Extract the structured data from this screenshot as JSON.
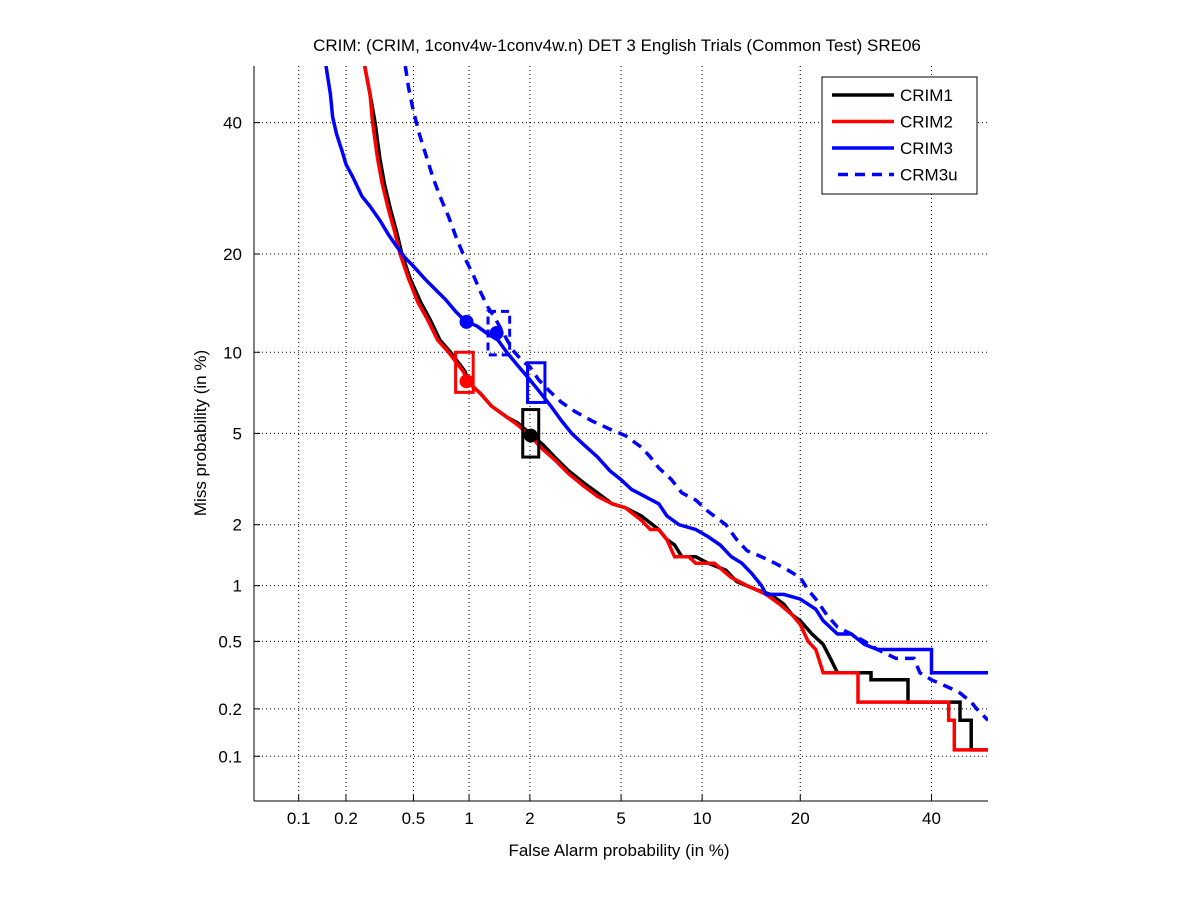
{
  "chart_data": {
    "type": "line",
    "title": "CRIM: (CRIM, 1conv4w-1conv4w.n) DET 3 English Trials (Common Test) SRE06",
    "xlabel": "False Alarm probability (in %)",
    "ylabel": "Miss probability (in %)",
    "scale": "probit",
    "xlim": [
      0.05,
      50
    ],
    "ylim": [
      0.05,
      50
    ],
    "grid": true,
    "legend_position": "top-right",
    "xticks": [
      0.1,
      0.2,
      0.5,
      1,
      2,
      5,
      10,
      20,
      40
    ],
    "xtick_labels": [
      "0.1",
      "0.2",
      "0.5",
      "1",
      "2",
      "5",
      "10",
      "20",
      "40"
    ],
    "yticks": [
      0.1,
      0.2,
      0.5,
      1,
      2,
      5,
      10,
      20,
      40
    ],
    "ytick_labels": [
      "0.1",
      "0.2",
      "0.5",
      "1",
      "2",
      "5",
      "10",
      "20",
      "40"
    ],
    "series": [
      {
        "name": "CRIM1",
        "color": "#000000",
        "style": "solid",
        "points": [
          [
            0.26,
            50
          ],
          [
            0.28,
            45
          ],
          [
            0.3,
            40
          ],
          [
            0.32,
            34
          ],
          [
            0.34,
            30
          ],
          [
            0.37,
            26
          ],
          [
            0.4,
            23
          ],
          [
            0.43,
            20
          ],
          [
            0.48,
            17
          ],
          [
            0.55,
            14.5
          ],
          [
            0.62,
            12.8
          ],
          [
            0.7,
            11
          ],
          [
            0.8,
            10
          ],
          [
            0.88,
            9.2
          ],
          [
            0.95,
            8.6
          ],
          [
            1.0,
            7.8
          ],
          [
            1.15,
            7.1
          ],
          [
            1.3,
            6.4
          ],
          [
            1.55,
            5.8
          ],
          [
            1.75,
            5.5
          ],
          [
            2.0,
            5.0
          ],
          [
            2.3,
            4.5
          ],
          [
            2.6,
            4.0
          ],
          [
            3.0,
            3.5
          ],
          [
            3.5,
            3.1
          ],
          [
            4.0,
            2.8
          ],
          [
            4.6,
            2.5
          ],
          [
            5.2,
            2.4
          ],
          [
            6.0,
            2.2
          ],
          [
            7.0,
            1.9
          ],
          [
            7.5,
            1.7
          ],
          [
            8.0,
            1.6
          ],
          [
            8.5,
            1.4
          ],
          [
            9.5,
            1.4
          ],
          [
            10.5,
            1.3
          ],
          [
            12,
            1.2
          ],
          [
            13,
            1.05
          ],
          [
            15,
            0.95
          ],
          [
            16.5,
            0.9
          ],
          [
            18,
            0.8
          ],
          [
            19,
            0.7
          ],
          [
            20,
            0.65
          ],
          [
            21.5,
            0.55
          ],
          [
            23,
            0.48
          ],
          [
            24,
            0.4
          ],
          [
            25,
            0.33
          ],
          [
            30,
            0.33
          ],
          [
            30,
            0.3
          ],
          [
            36,
            0.3
          ],
          [
            36,
            0.22
          ],
          [
            45,
            0.22
          ],
          [
            45,
            0.17
          ],
          [
            47,
            0.17
          ],
          [
            47,
            0.11
          ],
          [
            50,
            0.11
          ]
        ]
      },
      {
        "name": "CRIM2",
        "color": "#ff0000",
        "style": "solid",
        "points": [
          [
            0.26,
            50
          ],
          [
            0.28,
            45
          ],
          [
            0.29,
            40
          ],
          [
            0.31,
            34
          ],
          [
            0.33,
            30
          ],
          [
            0.36,
            26
          ],
          [
            0.39,
            23
          ],
          [
            0.42,
            20
          ],
          [
            0.47,
            17
          ],
          [
            0.53,
            14.5
          ],
          [
            0.6,
            12.8
          ],
          [
            0.68,
            11
          ],
          [
            0.78,
            10
          ],
          [
            0.86,
            9.2
          ],
          [
            0.93,
            8.6
          ],
          [
            1.0,
            7.8
          ],
          [
            1.15,
            7.1
          ],
          [
            1.3,
            6.4
          ],
          [
            1.55,
            5.8
          ],
          [
            1.75,
            5.4
          ],
          [
            2.0,
            4.9
          ],
          [
            2.3,
            4.3
          ],
          [
            2.6,
            3.9
          ],
          [
            3.0,
            3.4
          ],
          [
            3.5,
            3.0
          ],
          [
            4.0,
            2.7
          ],
          [
            4.6,
            2.5
          ],
          [
            5.2,
            2.4
          ],
          [
            6.0,
            2.1
          ],
          [
            6.5,
            1.9
          ],
          [
            7.0,
            1.9
          ],
          [
            7.5,
            1.7
          ],
          [
            8.0,
            1.4
          ],
          [
            9.0,
            1.4
          ],
          [
            9.5,
            1.3
          ],
          [
            11,
            1.3
          ],
          [
            12.5,
            1.1
          ],
          [
            14,
            1.0
          ],
          [
            16,
            0.9
          ],
          [
            17.5,
            0.8
          ],
          [
            19,
            0.7
          ],
          [
            20,
            0.62
          ],
          [
            21,
            0.5
          ],
          [
            22,
            0.45
          ],
          [
            23,
            0.33
          ],
          [
            28,
            0.33
          ],
          [
            28,
            0.22
          ],
          [
            43,
            0.22
          ],
          [
            43,
            0.17
          ],
          [
            44,
            0.17
          ],
          [
            44,
            0.11
          ],
          [
            50,
            0.11
          ]
        ]
      },
      {
        "name": "CRIM3",
        "color": "#0000ff",
        "style": "solid",
        "points": [
          [
            0.15,
            50
          ],
          [
            0.16,
            45
          ],
          [
            0.165,
            41
          ],
          [
            0.175,
            38
          ],
          [
            0.19,
            35
          ],
          [
            0.2,
            33
          ],
          [
            0.22,
            31
          ],
          [
            0.25,
            28
          ],
          [
            0.28,
            26.5
          ],
          [
            0.32,
            24.5
          ],
          [
            0.36,
            22.5
          ],
          [
            0.4,
            21
          ],
          [
            0.45,
            19.5
          ],
          [
            0.5,
            18.5
          ],
          [
            0.58,
            17
          ],
          [
            0.65,
            16
          ],
          [
            0.75,
            14.8
          ],
          [
            0.85,
            13.6
          ],
          [
            0.95,
            12.7
          ],
          [
            1.1,
            12.2
          ],
          [
            1.25,
            11.5
          ],
          [
            1.4,
            11
          ],
          [
            1.55,
            10
          ],
          [
            1.75,
            9.0
          ],
          [
            2.0,
            8.0
          ],
          [
            2.2,
            7.3
          ],
          [
            2.5,
            6.4
          ],
          [
            2.8,
            5.6
          ],
          [
            3.1,
            5.0
          ],
          [
            3.5,
            4.5
          ],
          [
            4.0,
            4.0
          ],
          [
            4.5,
            3.5
          ],
          [
            5.0,
            3.2
          ],
          [
            5.5,
            2.9
          ],
          [
            6.2,
            2.7
          ],
          [
            7.0,
            2.5
          ],
          [
            7.5,
            2.2
          ],
          [
            8.3,
            2.0
          ],
          [
            9.5,
            1.9
          ],
          [
            10.5,
            1.75
          ],
          [
            11.5,
            1.6
          ],
          [
            12.5,
            1.4
          ],
          [
            13.5,
            1.3
          ],
          [
            14.5,
            1.15
          ],
          [
            15.5,
            1.0
          ],
          [
            16,
            0.9
          ],
          [
            18,
            0.9
          ],
          [
            20,
            0.85
          ],
          [
            22,
            0.75
          ],
          [
            23,
            0.65
          ],
          [
            25,
            0.55
          ],
          [
            27,
            0.55
          ],
          [
            29,
            0.48
          ],
          [
            31,
            0.45
          ],
          [
            40,
            0.45
          ],
          [
            40,
            0.33
          ],
          [
            50,
            0.33
          ]
        ]
      },
      {
        "name": "CRM3u",
        "color": "#0000ff",
        "style": "dashed",
        "points": [
          [
            0.45,
            50
          ],
          [
            0.47,
            46
          ],
          [
            0.5,
            42
          ],
          [
            0.54,
            38
          ],
          [
            0.58,
            35
          ],
          [
            0.64,
            31
          ],
          [
            0.7,
            28
          ],
          [
            0.78,
            25
          ],
          [
            0.86,
            22
          ],
          [
            0.95,
            19.5
          ],
          [
            1.05,
            17.5
          ],
          [
            1.15,
            15.5
          ],
          [
            1.25,
            14
          ],
          [
            1.35,
            13
          ],
          [
            1.5,
            11.5
          ],
          [
            1.65,
            10.2
          ],
          [
            1.85,
            9.3
          ],
          [
            2.0,
            8.9
          ],
          [
            2.2,
            8.0
          ],
          [
            2.5,
            7.2
          ],
          [
            2.8,
            6.6
          ],
          [
            3.2,
            6.1
          ],
          [
            3.8,
            5.6
          ],
          [
            4.5,
            5.2
          ],
          [
            5.2,
            4.9
          ],
          [
            6.0,
            4.4
          ],
          [
            6.5,
            4.0
          ],
          [
            7.0,
            3.6
          ],
          [
            7.8,
            3.2
          ],
          [
            8.5,
            2.8
          ],
          [
            9.5,
            2.6
          ],
          [
            10.5,
            2.3
          ],
          [
            12,
            2.0
          ],
          [
            13,
            1.7
          ],
          [
            14,
            1.5
          ],
          [
            15.5,
            1.4
          ],
          [
            17,
            1.3
          ],
          [
            18.5,
            1.2
          ],
          [
            20,
            1.1
          ],
          [
            21,
            0.95
          ],
          [
            22,
            0.85
          ],
          [
            23.5,
            0.7
          ],
          [
            25,
            0.6
          ],
          [
            27,
            0.55
          ],
          [
            29,
            0.5
          ],
          [
            31,
            0.45
          ],
          [
            34,
            0.4
          ],
          [
            37,
            0.4
          ],
          [
            38,
            0.33
          ],
          [
            40,
            0.3
          ],
          [
            43,
            0.27
          ],
          [
            45,
            0.25
          ],
          [
            47,
            0.22
          ],
          [
            48,
            0.2
          ],
          [
            50,
            0.17
          ]
        ]
      }
    ],
    "markers": [
      {
        "series": "CRIM3",
        "kind": "circle",
        "x": 0.97,
        "y": 12.6,
        "color": "#0000ff"
      },
      {
        "series": "CRM3u",
        "kind": "circle",
        "x": 1.38,
        "y": 11.6,
        "color": "#0000ff"
      },
      {
        "series": "CRIM2",
        "kind": "circle",
        "x": 0.97,
        "y": 7.9,
        "color": "#ff0000"
      },
      {
        "series": "CRIM1",
        "kind": "circle",
        "x": 2.02,
        "y": 4.9,
        "color": "#000000"
      },
      {
        "series": "CRIM2",
        "kind": "box",
        "x": [
          0.85,
          1.05
        ],
        "y": [
          7.2,
          10.0
        ],
        "color": "#ff0000"
      },
      {
        "series": "CRIM1",
        "kind": "box",
        "x": [
          1.85,
          2.2
        ],
        "y": [
          4.0,
          6.2
        ],
        "color": "#000000"
      },
      {
        "series": "CRIM3",
        "kind": "box",
        "x": [
          1.95,
          2.35
        ],
        "y": [
          6.6,
          9.2
        ],
        "color": "#0000ff"
      },
      {
        "series": "CRM3u",
        "kind": "box",
        "x": [
          1.25,
          1.6
        ],
        "y": [
          9.8,
          13.6
        ],
        "color": "#0000ff"
      }
    ]
  }
}
